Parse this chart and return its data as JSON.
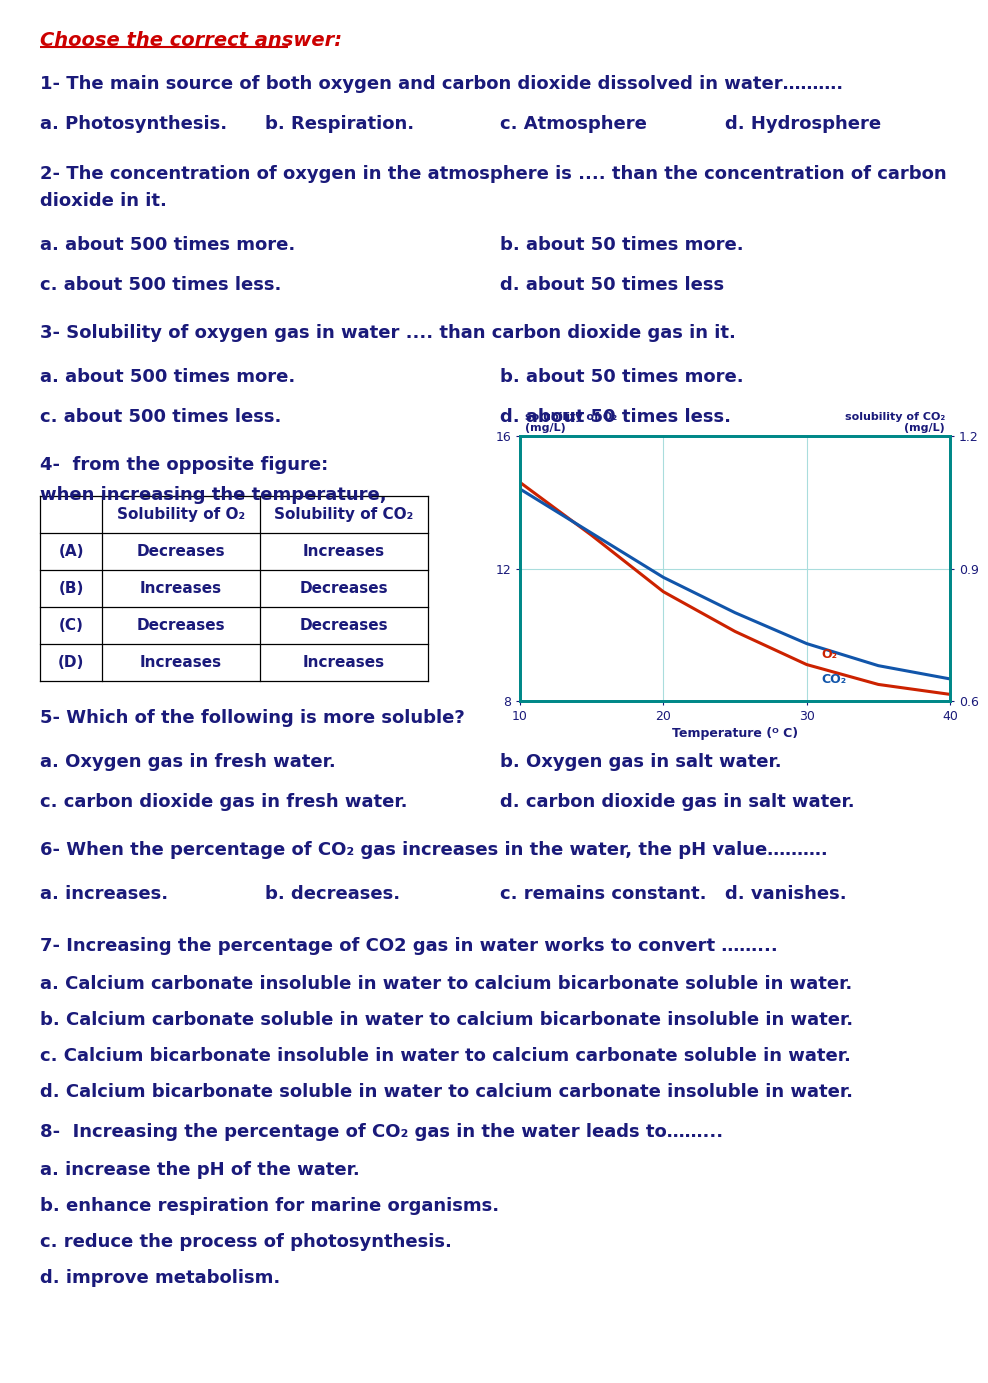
{
  "title": "Choose the correct answer:",
  "title_color": "#cc0000",
  "text_color": "#1a1a7a",
  "bg_color": "#ffffff",
  "questions": [
    {
      "number": "1-",
      "text": " The main source of both oxygen and carbon dioxide dissolved in water……….",
      "answers_inline": true,
      "answers": [
        "a. Photosynthesis.",
        "b. Respiration.",
        "c. Atmosphere",
        "d. Hydrosphere"
      ]
    },
    {
      "number": "2-",
      "text_line1": "2- The concentration of oxygen in the atmosphere is .... than the concentration of carbon",
      "text_line2": "dioxide in it.",
      "answers_inline": false,
      "answers": [
        "a. about 500 times more.",
        "b. about 50 times more.",
        "c. about 500 times less.",
        "d. about 50 times less"
      ]
    },
    {
      "number": "3-",
      "text": "3- Solubility of oxygen gas in water .... than carbon dioxide gas in it.",
      "answers_inline": false,
      "answers": [
        "a. about 500 times more.",
        "b. about 50 times more.",
        "c. about 500 times less.",
        "d. about 50 times less."
      ]
    },
    {
      "number": "4-",
      "text_line1": "4-  from the opposite figure:",
      "text_line2": "when increasing the temperature,",
      "has_table": true
    },
    {
      "number": "5-",
      "text": "5- Which of the following is more soluble?",
      "answers_inline": false,
      "answers": [
        "a. Oxygen gas in fresh water.",
        "b. Oxygen gas in salt water.",
        "c. carbon dioxide gas in fresh water.",
        "d. carbon dioxide gas in salt water."
      ]
    },
    {
      "number": "6-",
      "text": "6- When the percentage of CO₂ gas increases in the water, the pH value……….",
      "answers_inline": true,
      "answers": [
        "a. increases.",
        "b. decreases.",
        "c. remains constant.",
        "d. vanishes."
      ]
    },
    {
      "number": "7-",
      "text": "7- Increasing the percentage of CO2 gas in water works to convert ……...",
      "answers_inline": false,
      "answers": [
        "a. Calcium carbonate insoluble in water to calcium bicarbonate soluble in water.",
        "b. Calcium carbonate soluble in water to calcium bicarbonate insoluble in water.",
        "c. Calcium bicarbonate insoluble in water to calcium carbonate soluble in water.",
        "d. Calcium bicarbonate soluble in water to calcium carbonate insoluble in water."
      ]
    },
    {
      "number": "8-",
      "text": "8-  Increasing the percentage of CO₂ gas in the water leads to……...",
      "answers_inline": false,
      "answers": [
        "a. increase the pH of the water.",
        "b. enhance respiration for marine organisms.",
        "c. reduce the process of photosynthesis.",
        "d. improve metabolism."
      ]
    }
  ],
  "table_data": {
    "headers": [
      "",
      "Solubility of O₂",
      "Solubility of CO₂"
    ],
    "rows": [
      [
        "(A)",
        "Decreases",
        "Increases"
      ],
      [
        "(B)",
        "Increases",
        "Decreases"
      ],
      [
        "(C)",
        "Decreases",
        "Decreases"
      ],
      [
        "(D)",
        "Increases",
        "Increases"
      ]
    ]
  },
  "graph": {
    "xlabel": "Temperature (ᴼ C)",
    "xlim": [
      10,
      40
    ],
    "ylim_left": [
      8,
      16
    ],
    "ylim_right": [
      0.6,
      1.2
    ],
    "xticks": [
      10,
      20,
      30,
      40
    ],
    "yticks_left": [
      8,
      12,
      16
    ],
    "yticks_right": [
      0.6,
      0.9,
      1.2
    ],
    "o2_x": [
      10,
      15,
      20,
      25,
      30,
      35,
      40
    ],
    "o2_y": [
      14.6,
      13.0,
      11.3,
      10.1,
      9.1,
      8.5,
      8.2
    ],
    "co2_x": [
      10,
      15,
      20,
      25,
      30,
      35,
      40
    ],
    "co2_y": [
      1.08,
      0.98,
      0.88,
      0.8,
      0.73,
      0.68,
      0.65
    ],
    "o2_color": "#cc2200",
    "co2_color": "#1155aa",
    "border_color": "#008888",
    "label_color": "#1a1a7a",
    "grid_color": "#aadddd"
  }
}
